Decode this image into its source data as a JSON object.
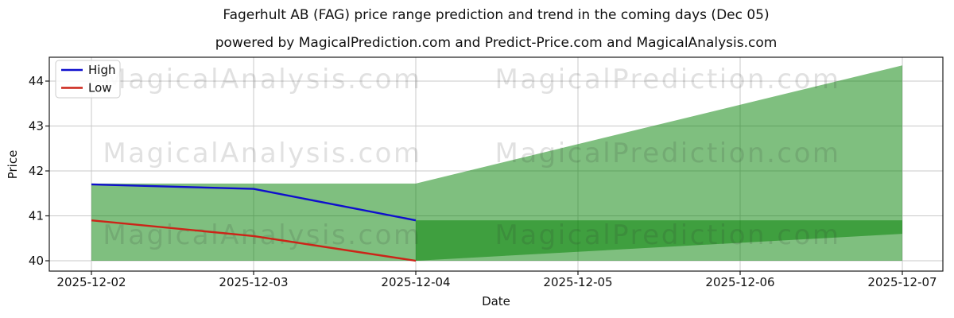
{
  "title": "Fagerhult AB (FAG) price range prediction and trend in the coming days (Dec 05)",
  "subtitle": "powered by MagicalPrediction.com and Predict-Price.com and MagicalAnalysis.com",
  "watermarks": {
    "left": "MagicalAnalysis.com",
    "right": "MagicalPrediction.com"
  },
  "legend": {
    "items": [
      {
        "label": "High",
        "color": "#0f0fcd"
      },
      {
        "label": "Low",
        "color": "#cc2418"
      }
    ]
  },
  "chart_data": {
    "type": "line",
    "title": "Fagerhult AB (FAG) price range prediction and trend in the coming days (Dec 05)",
    "xlabel": "Date",
    "ylabel": "Price",
    "x_ticks": [
      "2025-12-02",
      "2025-12-03",
      "2025-12-04",
      "2025-12-05",
      "2025-12-06",
      "2025-12-07"
    ],
    "y_ticks": [
      40,
      41,
      42,
      43,
      44
    ],
    "ylim": [
      39.8,
      44.5
    ],
    "grid": true,
    "legend_position": "upper-left",
    "series": [
      {
        "name": "High",
        "color": "#0f0fcd",
        "x": [
          "2025-12-02",
          "2025-12-03",
          "2025-12-04"
        ],
        "values": [
          41.7,
          41.6,
          40.9
        ]
      },
      {
        "name": "Low",
        "color": "#cc2418",
        "x": [
          "2025-12-02",
          "2025-12-03",
          "2025-12-04"
        ],
        "values": [
          40.9,
          40.55,
          40.0
        ]
      }
    ],
    "bands": [
      {
        "name": "prediction-range-fan",
        "fill": "rgba(0,128,0,0.5)",
        "points": [
          [
            "2025-12-02",
            41.72
          ],
          [
            "2025-12-04",
            41.72
          ],
          [
            "2025-12-07",
            44.35
          ],
          [
            "2025-12-07",
            40.0
          ],
          [
            "2025-12-04",
            40.0
          ],
          [
            "2025-12-02",
            40.0
          ]
        ]
      },
      {
        "name": "trend-overlap-band",
        "fill": "rgba(0,128,0,0.5)",
        "points": [
          [
            "2025-12-04",
            40.9
          ],
          [
            "2025-12-07",
            40.9
          ],
          [
            "2025-12-07",
            40.6
          ],
          [
            "2025-12-04",
            40.0
          ]
        ]
      }
    ],
    "colors": {
      "band_light_effective": "#7fbf7f",
      "band_dark_effective": "#3f9f3f",
      "grid": "#c9c9c9",
      "spine": "#1a1a1a"
    }
  }
}
